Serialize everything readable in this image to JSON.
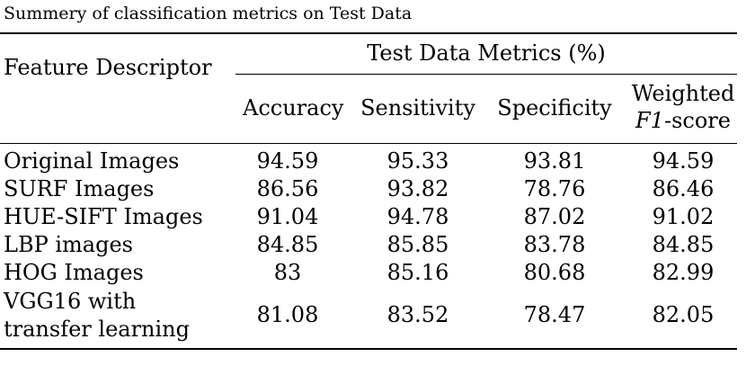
{
  "caption": "Summery of classification metrics on Test Data",
  "header": {
    "feature_col": "Feature Descriptor",
    "group": "Test Data Metrics (%)",
    "accuracy": "Accuracy",
    "sensitivity": "Sensitivity",
    "specificity": "Specificity",
    "weighted_line1": "Weighted",
    "f1_italic": "F1",
    "f1_suffix": "-score"
  },
  "rows": [
    {
      "label": "Original Images",
      "accuracy": "94.59",
      "sensitivity": "95.33",
      "specificity": "93.81",
      "f1": "94.59"
    },
    {
      "label": "SURF Images",
      "accuracy": "86.56",
      "sensitivity": "93.82",
      "specificity": "78.76",
      "f1": "86.46"
    },
    {
      "label": "HUE-SIFT Images",
      "accuracy": "91.04",
      "sensitivity": "94.78",
      "specificity": "87.02",
      "f1": "91.02"
    },
    {
      "label": "LBP images",
      "accuracy": "84.85",
      "sensitivity": "85.85",
      "specificity": "83.78",
      "f1": "84.85"
    },
    {
      "label": "HOG Images",
      "accuracy": "83",
      "sensitivity": "85.16",
      "specificity": "80.68",
      "f1": "82.99"
    },
    {
      "label_line1": "VGG16 with",
      "label_line2": "transfer learning",
      "accuracy": "81.08",
      "sensitivity": "83.52",
      "specificity": "78.47",
      "f1": "82.05"
    }
  ]
}
